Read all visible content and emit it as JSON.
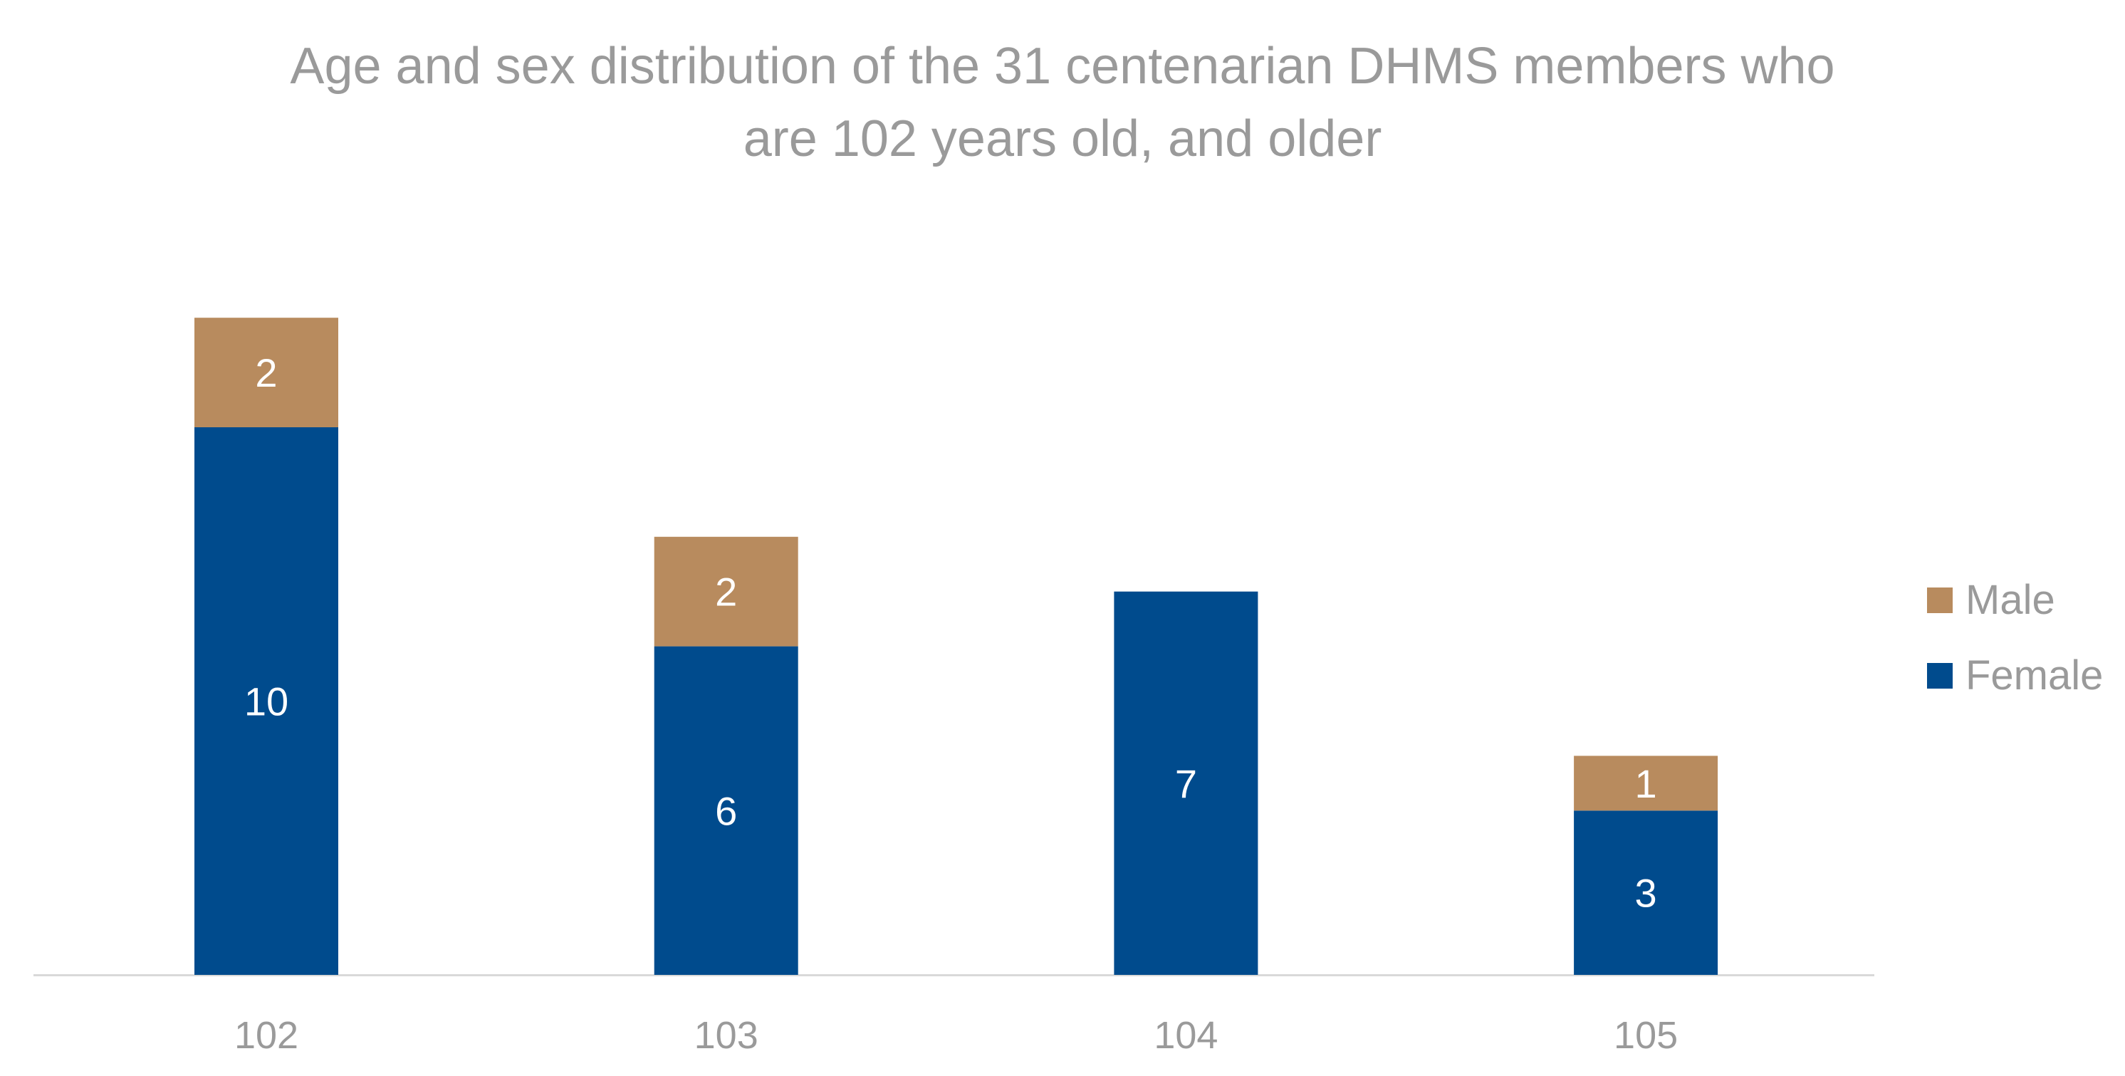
{
  "chart_data": {
    "type": "bar",
    "stacked": true,
    "title": "Age and sex distribution of the 31 centenarian DHMS members who are 102 years old, and older",
    "title_lines": [
      "Age and sex distribution of the 31 centenarian DHMS members who",
      "are 102 years old, and older"
    ],
    "categories": [
      "102",
      "103",
      "104",
      "105"
    ],
    "series": [
      {
        "name": "Female",
        "values": [
          10,
          6,
          7,
          3
        ],
        "color": "#004b8d"
      },
      {
        "name": "Male",
        "values": [
          2,
          2,
          0,
          1
        ],
        "color": "#b88b5e"
      }
    ],
    "xlabel": "",
    "ylabel": "",
    "ylim": [
      0,
      12
    ],
    "grid": false,
    "legend_position": "right",
    "data_labels": true,
    "colors": {
      "title": "#9a9a9a",
      "axis_text": "#9a9a9a",
      "axis_line": "#d9d9d9",
      "data_label": "#ffffff"
    }
  }
}
